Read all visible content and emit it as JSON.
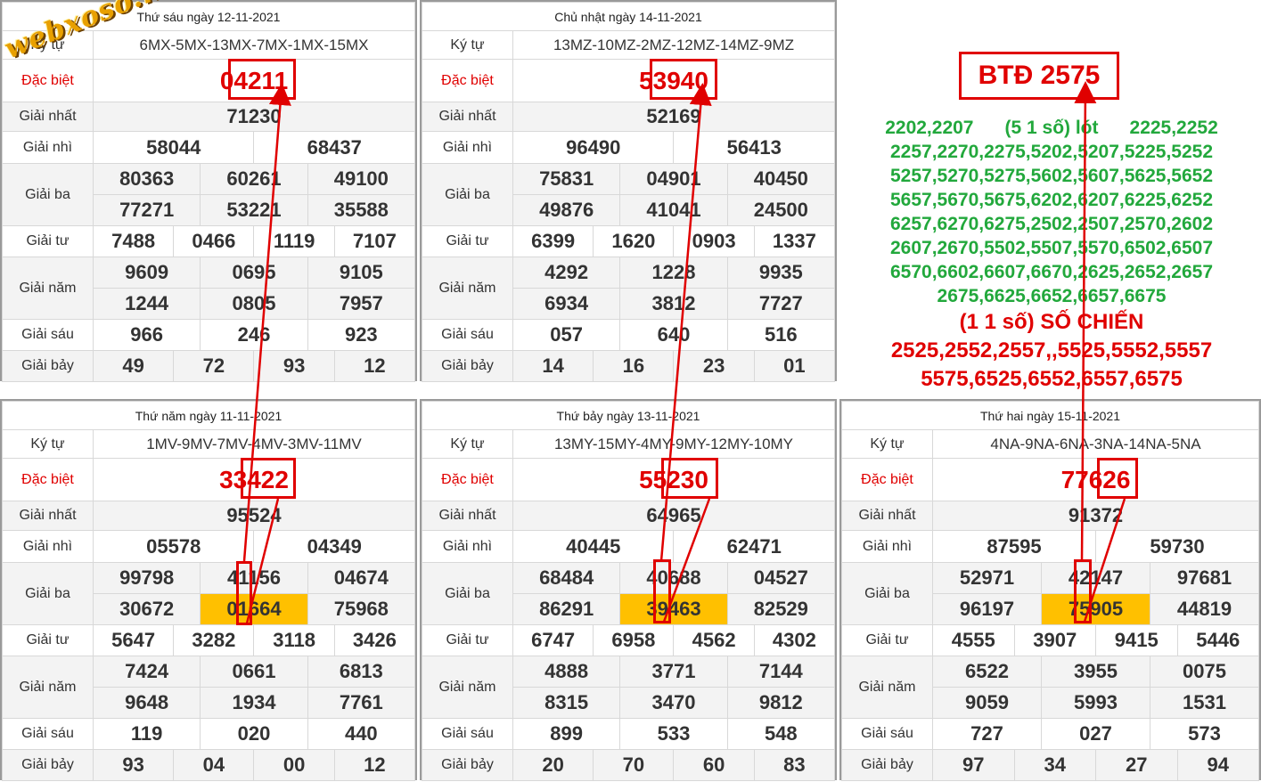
{
  "labels": {
    "ky_tu": "Ký tự",
    "dac_biet": "Đặc biệt",
    "giai_nhat": "Giải nhất",
    "giai_nhi": "Giải nhì",
    "giai_ba": "Giải ba",
    "giai_tu": "Giải tư",
    "giai_nam": "Giải năm",
    "giai_sau": "Giải sáu",
    "giai_bay": "Giải bảy"
  },
  "watermark": "webxoso.net",
  "panels": [
    {
      "title": "Thứ sáu ngày 12-11-2021",
      "ky_tu": "6MX-5MX-13MX-7MX-1MX-15MX",
      "dac_biet": "04211",
      "giai_nhat": "71230",
      "giai_nhi": [
        "58044",
        "68437"
      ],
      "giai_ba": [
        "80363",
        "60261",
        "49100",
        "77271",
        "53221",
        "35588"
      ],
      "giai_tu": [
        "7488",
        "0466",
        "1119",
        "7107"
      ],
      "giai_nam": [
        "9609",
        "0695",
        "9105",
        "1244",
        "0805",
        "7957"
      ],
      "giai_sau": [
        "966",
        "246",
        "923"
      ],
      "giai_bay": [
        "49",
        "72",
        "93",
        "12"
      ]
    },
    {
      "title": "Chủ nhật ngày 14-11-2021",
      "ky_tu": "13MZ-10MZ-2MZ-12MZ-14MZ-9MZ",
      "dac_biet": "53940",
      "giai_nhat": "52169",
      "giai_nhi": [
        "96490",
        "56413"
      ],
      "giai_ba": [
        "75831",
        "04901",
        "40450",
        "49876",
        "41041",
        "24500"
      ],
      "giai_tu": [
        "6399",
        "1620",
        "0903",
        "1337"
      ],
      "giai_nam": [
        "4292",
        "1228",
        "9935",
        "6934",
        "3812",
        "7727"
      ],
      "giai_sau": [
        "057",
        "640",
        "516"
      ],
      "giai_bay": [
        "14",
        "16",
        "23",
        "01"
      ]
    },
    {
      "title": "Thứ năm ngày 11-11-2021",
      "ky_tu": "1MV-9MV-7MV-4MV-3MV-11MV",
      "dac_biet": "33422",
      "giai_nhat": "95524",
      "giai_nhi": [
        "05578",
        "04349"
      ],
      "giai_ba": [
        "99798",
        "41156",
        "04674",
        "30672",
        "01664",
        "75968"
      ],
      "giai_tu": [
        "5647",
        "3282",
        "3118",
        "3426"
      ],
      "giai_nam": [
        "7424",
        "0661",
        "6813",
        "9648",
        "1934",
        "7761"
      ],
      "giai_sau": [
        "119",
        "020",
        "440"
      ],
      "giai_bay": [
        "93",
        "04",
        "00",
        "12"
      ]
    },
    {
      "title": "Thứ bảy ngày 13-11-2021",
      "ky_tu": "13MY-15MY-4MY-9MY-12MY-10MY",
      "dac_biet": "55230",
      "giai_nhat": "64965",
      "giai_nhi": [
        "40445",
        "62471"
      ],
      "giai_ba": [
        "68484",
        "40688",
        "04527",
        "86291",
        "39463",
        "82529"
      ],
      "giai_tu": [
        "6747",
        "6958",
        "4562",
        "4302"
      ],
      "giai_nam": [
        "4888",
        "3771",
        "7144",
        "8315",
        "3470",
        "9812"
      ],
      "giai_sau": [
        "899",
        "533",
        "548"
      ],
      "giai_bay": [
        "20",
        "70",
        "60",
        "83"
      ]
    },
    {
      "title": "Thứ hai ngày 15-11-2021",
      "ky_tu": "4NA-9NA-6NA-3NA-14NA-5NA",
      "dac_biet": "77626",
      "giai_nhat": "91372",
      "giai_nhi": [
        "87595",
        "59730"
      ],
      "giai_ba": [
        "52971",
        "42147",
        "97681",
        "96197",
        "75905",
        "44819"
      ],
      "giai_tu": [
        "4555",
        "3907",
        "9415",
        "5446"
      ],
      "giai_nam": [
        "6522",
        "3955",
        "0075",
        "9059",
        "5993",
        "1531"
      ],
      "giai_sau": [
        "727",
        "027",
        "573"
      ],
      "giai_bay": [
        "97",
        "34",
        "27",
        "94"
      ]
    }
  ],
  "prediction": {
    "btd": "BTĐ 2575",
    "green_lines": [
      "2202,2207      (5 1 số) lót      2225,2252",
      "2257,2270,2275,5202,5207,5225,5252",
      "5257,5270,5275,5602,5607,5625,5652",
      "5657,5670,5675,6202,6207,6225,6252",
      "6257,6270,6275,2502,2507,2570,2602",
      "2607,2670,5502,5507,5570,6502,6507",
      "6570,6602,6607,6670,2625,2652,2657",
      "2675,6625,6652,6657,6675"
    ],
    "red_lines": [
      "(1 1 số) SỐ CHIẾN",
      "2525,2552,2557,,5525,5552,5557",
      "5575,6525,6552,6557,6575"
    ],
    "colors": {
      "green": "#22a83c",
      "red": "#e00000",
      "highlight": "#ffc000"
    }
  }
}
